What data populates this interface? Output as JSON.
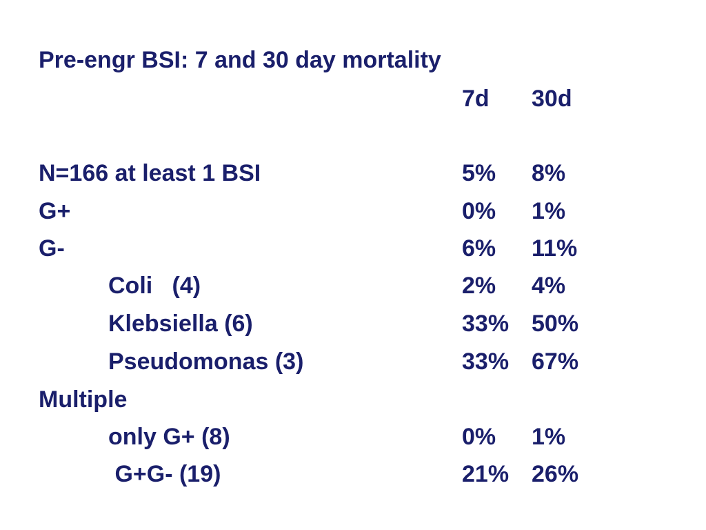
{
  "title": "Pre-engr BSI: 7 and 30 day mortality",
  "columns": {
    "d7": "7d",
    "d30": "30d"
  },
  "rows": [
    {
      "label": "N=166 at least 1 BSI",
      "d7": "5%",
      "d30": "8%"
    },
    {
      "label": "G+",
      "d7": "0%",
      "d30": "1%"
    },
    {
      "label": "G-",
      "d7": "6%",
      "d30": "11%"
    },
    {
      "label": "Coli   (4)",
      "d7": "2%",
      "d30": "4%"
    },
    {
      "label": "Klebsiella (6)",
      "d7": "33%",
      "d30": "50%"
    },
    {
      "label": "Pseudomonas (3)",
      "d7": "33%",
      "d30": "67%"
    },
    {
      "label": "Multiple",
      "d7": "",
      "d30": ""
    },
    {
      "label": "only G+ (8)",
      "d7": "0%",
      "d30": "1%"
    },
    {
      "label": " G+G- (19)",
      "d7": "21%",
      "d30": "26%"
    }
  ]
}
